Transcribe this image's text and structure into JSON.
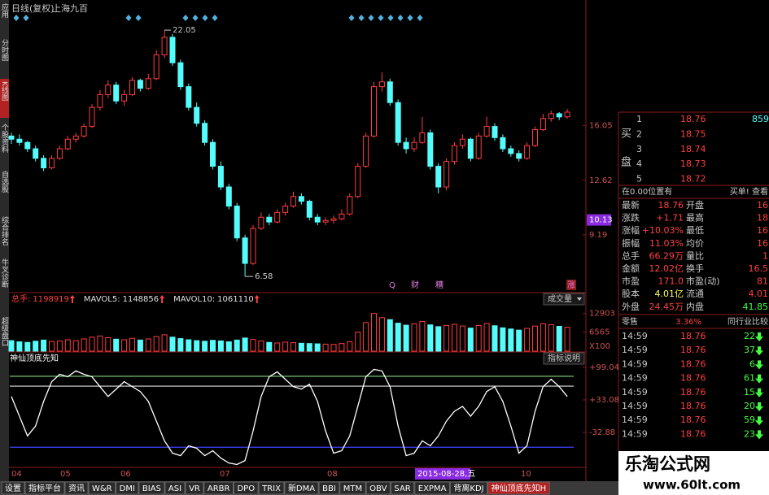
{
  "header": {
    "period": "日线(复权)",
    "name": "上海九百"
  },
  "sidebar": [
    "应用",
    "分时图",
    "K线图",
    "个股资料",
    "自选股",
    "综合排名",
    "牛叉诊断",
    "超级盘口"
  ],
  "chart_data": [
    {
      "type": "candlestick",
      "up_color": "#ff3c3c",
      "down_color": "#54fcfc",
      "candles": [
        [
          15.4,
          15.6,
          14.9,
          15.2
        ],
        [
          15.2,
          15.5,
          14.8,
          15.0
        ],
        [
          15.0,
          15.1,
          14.4,
          14.6
        ],
        [
          14.6,
          14.8,
          13.8,
          14.0
        ],
        [
          14.0,
          14.2,
          13.2,
          13.4
        ],
        [
          13.4,
          14.2,
          13.3,
          14.0
        ],
        [
          14.0,
          14.8,
          13.9,
          14.6
        ],
        [
          14.6,
          15.4,
          14.5,
          15.2
        ],
        [
          15.2,
          15.6,
          15.0,
          15.4
        ],
        [
          15.4,
          16.2,
          15.3,
          16.0
        ],
        [
          16.0,
          17.4,
          15.9,
          17.2
        ],
        [
          17.2,
          18.3,
          17.0,
          18.0
        ],
        [
          18.0,
          18.9,
          17.8,
          18.6
        ],
        [
          18.6,
          18.8,
          17.4,
          17.6
        ],
        [
          17.6,
          18.3,
          17.3,
          18.0
        ],
        [
          18.0,
          19.1,
          17.9,
          18.9
        ],
        [
          18.9,
          19.0,
          18.2,
          18.4
        ],
        [
          18.4,
          19.3,
          18.3,
          19.0
        ],
        [
          19.0,
          20.8,
          18.9,
          20.5
        ],
        [
          20.5,
          22.05,
          20.3,
          21.6
        ],
        [
          21.6,
          21.8,
          19.8,
          20.0
        ],
        [
          20.0,
          20.2,
          18.3,
          18.5
        ],
        [
          18.5,
          18.7,
          17.0,
          17.2
        ],
        [
          17.2,
          17.5,
          16.0,
          16.2
        ],
        [
          16.2,
          16.4,
          14.8,
          15.0
        ],
        [
          15.0,
          15.2,
          13.3,
          13.5
        ],
        [
          13.5,
          13.8,
          12.0,
          12.2
        ],
        [
          12.2,
          12.4,
          10.8,
          11.0
        ],
        [
          11.0,
          11.2,
          8.8,
          9.0
        ],
        [
          9.0,
          9.2,
          6.58,
          7.4
        ],
        [
          7.4,
          9.8,
          7.3,
          9.6
        ],
        [
          9.6,
          10.6,
          9.5,
          10.3
        ],
        [
          10.3,
          10.5,
          9.8,
          10.0
        ],
        [
          10.0,
          10.8,
          9.9,
          10.6
        ],
        [
          10.6,
          11.2,
          10.4,
          11.0
        ],
        [
          11.0,
          11.9,
          10.9,
          11.6
        ],
        [
          11.6,
          11.8,
          11.1,
          11.3
        ],
        [
          11.3,
          11.4,
          10.1,
          10.3
        ],
        [
          10.3,
          10.5,
          9.8,
          10.0
        ],
        [
          10.0,
          10.3,
          9.8,
          10.1
        ],
        [
          10.1,
          10.4,
          9.9,
          10.2
        ],
        [
          10.2,
          10.8,
          10.1,
          10.5
        ],
        [
          10.5,
          11.8,
          10.4,
          11.6
        ],
        [
          11.6,
          13.7,
          11.5,
          13.5
        ],
        [
          13.5,
          15.6,
          13.4,
          15.4
        ],
        [
          15.4,
          18.8,
          15.3,
          18.5
        ],
        [
          18.5,
          19.4,
          18.2,
          18.8
        ],
        [
          18.8,
          19.0,
          17.3,
          17.5
        ],
        [
          17.5,
          17.7,
          14.8,
          15.0
        ],
        [
          15.0,
          15.3,
          14.3,
          14.6
        ],
        [
          14.6,
          15.3,
          14.4,
          15.0
        ],
        [
          15.0,
          16.6,
          14.9,
          15.6
        ],
        [
          15.6,
          15.8,
          13.3,
          13.5
        ],
        [
          13.5,
          13.7,
          11.8,
          12.2
        ],
        [
          12.2,
          14.0,
          12.0,
          13.8
        ],
        [
          13.8,
          15.0,
          13.6,
          14.8
        ],
        [
          14.8,
          15.5,
          14.6,
          15.2
        ],
        [
          15.2,
          15.3,
          13.8,
          14.0
        ],
        [
          14.0,
          15.6,
          13.9,
          15.4
        ],
        [
          15.4,
          16.6,
          15.3,
          16.0
        ],
        [
          16.0,
          16.2,
          15.1,
          15.3
        ],
        [
          15.3,
          15.5,
          14.4,
          14.6
        ],
        [
          14.6,
          14.8,
          14.1,
          14.3
        ],
        [
          14.3,
          14.5,
          13.8,
          14.0
        ],
        [
          14.0,
          15.0,
          13.9,
          14.8
        ],
        [
          14.8,
          16.0,
          14.7,
          15.8
        ],
        [
          15.8,
          16.8,
          15.7,
          16.5
        ],
        [
          16.5,
          17.0,
          16.3,
          16.8
        ],
        [
          16.8,
          16.9,
          16.4,
          16.6
        ],
        [
          16.6,
          17.1,
          16.5,
          16.9
        ]
      ],
      "ylim": [
        5.31,
        23.33
      ],
      "yticks": [
        16.05,
        12.62,
        9.19
      ],
      "cursor_price": 10.13,
      "max_label": 22.05,
      "min_label": 6.58,
      "events": [
        "Q",
        "财",
        "糟",
        "涨"
      ]
    },
    {
      "type": "volume",
      "title": "成交量",
      "stats": [
        {
          "name": "总手:",
          "value": 1198919
        },
        {
          "name": "MAVOL5:",
          "value": 1148856
        },
        {
          "name": "MAVOL10:",
          "value": 1061110
        }
      ],
      "values": [
        3600,
        3200,
        3000,
        3400,
        3800,
        3300,
        3500,
        3900,
        3600,
        4200,
        4800,
        5200,
        4600,
        4100,
        3900,
        4400,
        3800,
        4200,
        5000,
        5600,
        4800,
        4300,
        3900,
        3600,
        3400,
        3700,
        3500,
        3200,
        3800,
        4500,
        4000,
        3500,
        3000,
        2800,
        3100,
        2900,
        2700,
        2600,
        2500,
        2400,
        2300,
        2600,
        3200,
        6500,
        9800,
        12903,
        11500,
        10800,
        9600,
        8900,
        9400,
        10200,
        9000,
        8400,
        8800,
        9200,
        8600,
        7900,
        8800,
        9500,
        8700,
        8000,
        7600,
        7200,
        7800,
        8600,
        9400,
        9100,
        8500,
        8200
      ],
      "ylim": [
        0,
        14500
      ],
      "yticks": [
        12903,
        6565
      ],
      "unit": "X100"
    },
    {
      "type": "line",
      "title": "神仙顶底先知",
      "button": "指标说明",
      "color": "#ffffff",
      "values": [
        40,
        0,
        -40,
        -20,
        30,
        70,
        85,
        80,
        92,
        85,
        80,
        60,
        40,
        55,
        70,
        60,
        50,
        30,
        -10,
        -50,
        -75,
        -80,
        -60,
        -65,
        -80,
        -70,
        -85,
        -95,
        -98,
        -90,
        -30,
        40,
        80,
        90,
        75,
        60,
        55,
        65,
        30,
        -30,
        -75,
        -70,
        -40,
        20,
        80,
        95,
        92,
        60,
        -20,
        -80,
        -75,
        -50,
        -60,
        -40,
        -10,
        10,
        20,
        0,
        20,
        50,
        60,
        30,
        -20,
        -75,
        -60,
        10,
        60,
        75,
        60,
        40
      ],
      "levels": [
        {
          "value": 81,
          "color": "#7fd87f"
        },
        {
          "value": 61,
          "color": "#e0e0e0"
        },
        {
          "value": -63,
          "color": "#4040ff"
        }
      ],
      "ylim": [
        -103.8,
        110.6
      ],
      "yticks": [
        {
          "value": 99.04,
          "label": "+99.04"
        },
        {
          "value": 33.08,
          "label": "+33.08"
        },
        {
          "value": -32.88,
          "label": "-32.88"
        }
      ],
      "xticks": [
        "04",
        "05",
        "06",
        "07",
        "08",
        "10"
      ],
      "cursor_date": "2015-08-28,五"
    }
  ],
  "quote": {
    "side": [
      "买",
      "盘"
    ],
    "bids": [
      {
        "level": "1",
        "price": 18.76,
        "volume": 859
      },
      {
        "level": "2",
        "price": 18.75
      },
      {
        "level": "3",
        "price": 18.74
      },
      {
        "level": "4",
        "price": 18.73
      },
      {
        "level": "5",
        "price": 18.72
      }
    ],
    "notice": "在0.00位置有",
    "notice_action": "买单! 查看",
    "stats": [
      [
        "最新",
        "18.76",
        "开盘",
        "16"
      ],
      [
        "涨跌",
        "+1.71",
        "最高",
        "18"
      ],
      [
        "涨幅",
        "+10.03%",
        "最低",
        "16"
      ],
      [
        "振幅",
        "11.03%",
        "均价",
        "16"
      ],
      [
        "总手",
        "66.29万",
        "量比",
        "1"
      ],
      [
        "金额",
        "12.02亿",
        "换手",
        "16.5"
      ],
      [
        "市盈",
        "171.0",
        "市盈(动)",
        "81"
      ],
      [
        "股本",
        "4.01亿",
        "流通",
        "4.01"
      ],
      [
        "外盘",
        "24.45万",
        "内盘",
        "41.85"
      ]
    ],
    "retail": [
      "零售",
      "3.36%",
      "同行业比较"
    ],
    "trades": [
      {
        "time": "14:59",
        "price": 18.76,
        "volume": 22
      },
      {
        "time": "14:59",
        "price": 18.76,
        "volume": 37
      },
      {
        "time": "14:59",
        "price": 18.76,
        "volume": 6
      },
      {
        "time": "14:59",
        "price": 18.76,
        "volume": 61
      },
      {
        "time": "14:59",
        "price": 18.76,
        "volume": 15
      },
      {
        "time": "14:59",
        "price": 18.76,
        "volume": 20
      },
      {
        "time": "14:59",
        "price": 18.76,
        "volume": 59
      },
      {
        "time": "14:59",
        "price": 18.76,
        "volume": 23
      }
    ]
  },
  "tabs": [
    "设置",
    "指标平台",
    "资讯",
    "W&R",
    "DMI",
    "BIAS",
    "ASI",
    "VR",
    "ARBR",
    "DPO",
    "TRIX",
    "新DMA",
    "BBI",
    "MTM",
    "OBV",
    "SAR",
    "EXPMA",
    "背离KDJ",
    "神仙顶底先知H"
  ],
  "watermark": {
    "title": "乐淘公式网",
    "url": "www.60lt.com"
  }
}
